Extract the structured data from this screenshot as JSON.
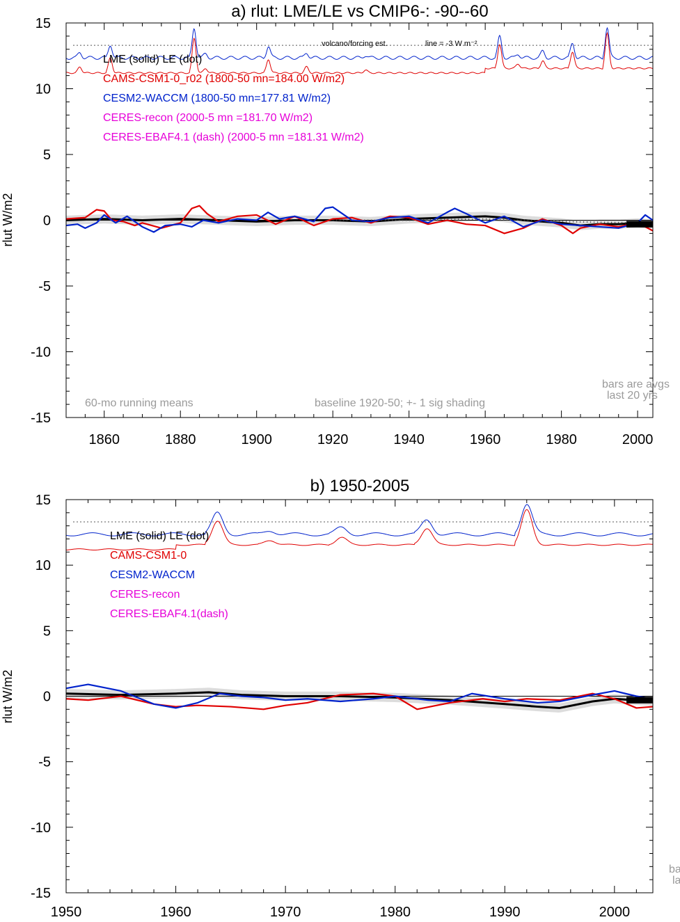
{
  "colors": {
    "lme": "#000000",
    "cams": "#e00000",
    "cesm": "#0022cc",
    "ceres": "#e600d8",
    "grey": "#9a9a9a",
    "shade": "#dcdcdc"
  },
  "ylabel": "rlut W/m2",
  "panel_a": {
    "title": "a) rlut: LME/LE vs CMIP6-: -90--60",
    "legend": [
      "LME (solid)   LE (dot)",
      "CAMS-CSM1-0_r02 (1800-50 mn=184.00 W/m2)",
      "CESM2-WACCM (1800-50 mn=177.81 W/m2)",
      "CERES-recon (2000-5 mn =181.70 W/m2)",
      "CERES-EBAF4.1 (dash) (2000-5 mn =181.31 W/m2)"
    ],
    "volcano_note": "volcano/forcing est.",
    "line_note": "line = -3 W m⁻²",
    "running_note": "60-mo running means",
    "baseline_note": "baseline 1920-50; +- 1 sig shading",
    "bars_note_1": "bars are avgs",
    "bars_note_2": "last 20 yrs",
    "xticks": [
      "1860",
      "1880",
      "1900",
      "1920",
      "1940",
      "1960",
      "1980",
      "2000"
    ],
    "yticks": [
      "15",
      "10",
      "5",
      "0",
      "-5",
      "-10",
      "-15"
    ]
  },
  "panel_b": {
    "title": "b) 1950-2005",
    "legend": [
      "LME (solid)        LE (dot)",
      "CAMS-CSM1-0",
      "CESM2-WACCM",
      "CERES-recon",
      "CERES-EBAF4.1(dash)"
    ],
    "bars_note_1": "ba",
    "bars_note_2": "la",
    "xticks": [
      "1950",
      "1960",
      "1970",
      "1980",
      "1990",
      "2000"
    ],
    "yticks": [
      "15",
      "10",
      "5",
      "0",
      "-5",
      "-10",
      "-15"
    ]
  },
  "chart_data": [
    {
      "type": "line",
      "title": "a) rlut: LME/LE vs CMIP6-: -90--60",
      "xlabel": "",
      "ylabel": "rlut W/m2",
      "xlim": [
        1850,
        2004
      ],
      "ylim": [
        -15,
        15
      ],
      "reference_line": 13.3,
      "series": [
        {
          "name": "LME (solid)",
          "x": [
            1850,
            1860,
            1870,
            1880,
            1890,
            1900,
            1910,
            1920,
            1930,
            1940,
            1950,
            1960,
            1965,
            1970,
            1975,
            1980,
            1985,
            1990,
            1995,
            2000,
            2004
          ],
          "values": [
            0.0,
            0.1,
            0.0,
            0.1,
            0.0,
            -0.1,
            0.0,
            0.0,
            -0.1,
            0.1,
            0.2,
            0.3,
            0.2,
            0.0,
            -0.1,
            -0.2,
            -0.4,
            -0.3,
            -0.3,
            -0.2,
            -0.3
          ]
        },
        {
          "name": "CAMS-CSM1-0_r02",
          "x": [
            1850,
            1855,
            1858,
            1860,
            1862,
            1865,
            1868,
            1870,
            1875,
            1880,
            1883,
            1885,
            1887,
            1890,
            1895,
            1900,
            1905,
            1910,
            1915,
            1920,
            1925,
            1930,
            1935,
            1940,
            1945,
            1950,
            1955,
            1960,
            1965,
            1970,
            1975,
            1980,
            1983,
            1985,
            1990,
            1995,
            2000,
            2004
          ],
          "values": [
            0.1,
            0.2,
            0.8,
            0.7,
            0.0,
            -0.1,
            -0.4,
            -0.2,
            -0.6,
            -0.2,
            0.9,
            1.1,
            0.5,
            -0.1,
            0.3,
            0.4,
            -0.3,
            0.3,
            -0.4,
            0.1,
            0.2,
            -0.2,
            0.3,
            0.2,
            -0.3,
            0.0,
            -0.3,
            -0.4,
            -1.0,
            -0.6,
            0.1,
            -0.4,
            -1.0,
            -0.6,
            -0.3,
            -0.5,
            -0.2,
            -0.8
          ]
        },
        {
          "name": "CESM2-WACCM",
          "x": [
            1850,
            1853,
            1855,
            1858,
            1860,
            1863,
            1866,
            1870,
            1873,
            1876,
            1880,
            1883,
            1886,
            1890,
            1895,
            1900,
            1903,
            1906,
            1910,
            1915,
            1918,
            1920,
            1922,
            1925,
            1930,
            1935,
            1940,
            1945,
            1950,
            1952,
            1955,
            1960,
            1965,
            1970,
            1975,
            1980,
            1985,
            1990,
            1995,
            2000,
            2002,
            2004
          ],
          "values": [
            -0.4,
            -0.3,
            -0.6,
            -0.2,
            0.4,
            -0.2,
            0.3,
            -0.5,
            -0.9,
            -0.4,
            -0.3,
            -0.5,
            0.0,
            -0.2,
            0.1,
            0.0,
            0.6,
            0.1,
            0.3,
            -0.1,
            0.9,
            1.0,
            0.6,
            0.0,
            -0.1,
            0.2,
            0.3,
            -0.2,
            0.6,
            0.9,
            0.5,
            -0.2,
            0.3,
            -0.5,
            0.0,
            -0.3,
            -0.4,
            -0.5,
            -0.6,
            -0.2,
            0.4,
            0.0
          ]
        },
        {
          "name": "LE (dot)",
          "x": [
            1920,
            1940,
            1960,
            1980,
            2000,
            2004
          ],
          "values": [
            0.0,
            0.0,
            0.1,
            -0.1,
            -0.2,
            -0.3
          ]
        }
      ]
    },
    {
      "type": "line",
      "title": "b) 1950-2005",
      "xlabel": "",
      "ylabel": "rlut W/m2",
      "xlim": [
        1950,
        2003.5
      ],
      "ylim": [
        -15,
        15
      ],
      "reference_line": 13.3,
      "series": [
        {
          "name": "LME (solid)",
          "x": [
            1950,
            1955,
            1960,
            1963,
            1966,
            1970,
            1975,
            1980,
            1985,
            1990,
            1993,
            1995,
            1998,
            2000,
            2003.5
          ],
          "values": [
            0.2,
            0.1,
            0.2,
            0.3,
            0.1,
            0.0,
            0.0,
            -0.1,
            -0.3,
            -0.6,
            -0.8,
            -0.9,
            -0.4,
            -0.2,
            -0.4
          ]
        },
        {
          "name": "CAMS-CSM1-0",
          "x": [
            1950,
            1952,
            1955,
            1958,
            1960,
            1962,
            1965,
            1968,
            1970,
            1972,
            1975,
            1978,
            1980,
            1982,
            1985,
            1988,
            1990,
            1992,
            1995,
            1998,
            2000,
            2002,
            2003.5
          ],
          "values": [
            -0.2,
            -0.3,
            0.0,
            -0.6,
            -0.8,
            -0.7,
            -0.8,
            -1.0,
            -0.7,
            -0.5,
            0.1,
            0.2,
            0.0,
            -1.0,
            -0.5,
            -0.2,
            -0.4,
            -0.2,
            -0.3,
            0.2,
            -0.2,
            -0.9,
            -0.8
          ]
        },
        {
          "name": "CESM2-WACCM",
          "x": [
            1950,
            1952,
            1955,
            1958,
            1960,
            1962,
            1964,
            1966,
            1968,
            1970,
            1972,
            1975,
            1978,
            1980,
            1983,
            1985,
            1987,
            1990,
            1993,
            1995,
            1998,
            2000,
            2002,
            2003.5
          ],
          "values": [
            0.6,
            0.9,
            0.4,
            -0.6,
            -0.9,
            -0.5,
            0.2,
            0.0,
            -0.1,
            -0.3,
            -0.2,
            -0.4,
            -0.2,
            0.0,
            -0.3,
            -0.4,
            0.2,
            -0.2,
            -0.5,
            -0.4,
            0.1,
            0.4,
            0.0,
            -0.2
          ]
        }
      ]
    }
  ]
}
